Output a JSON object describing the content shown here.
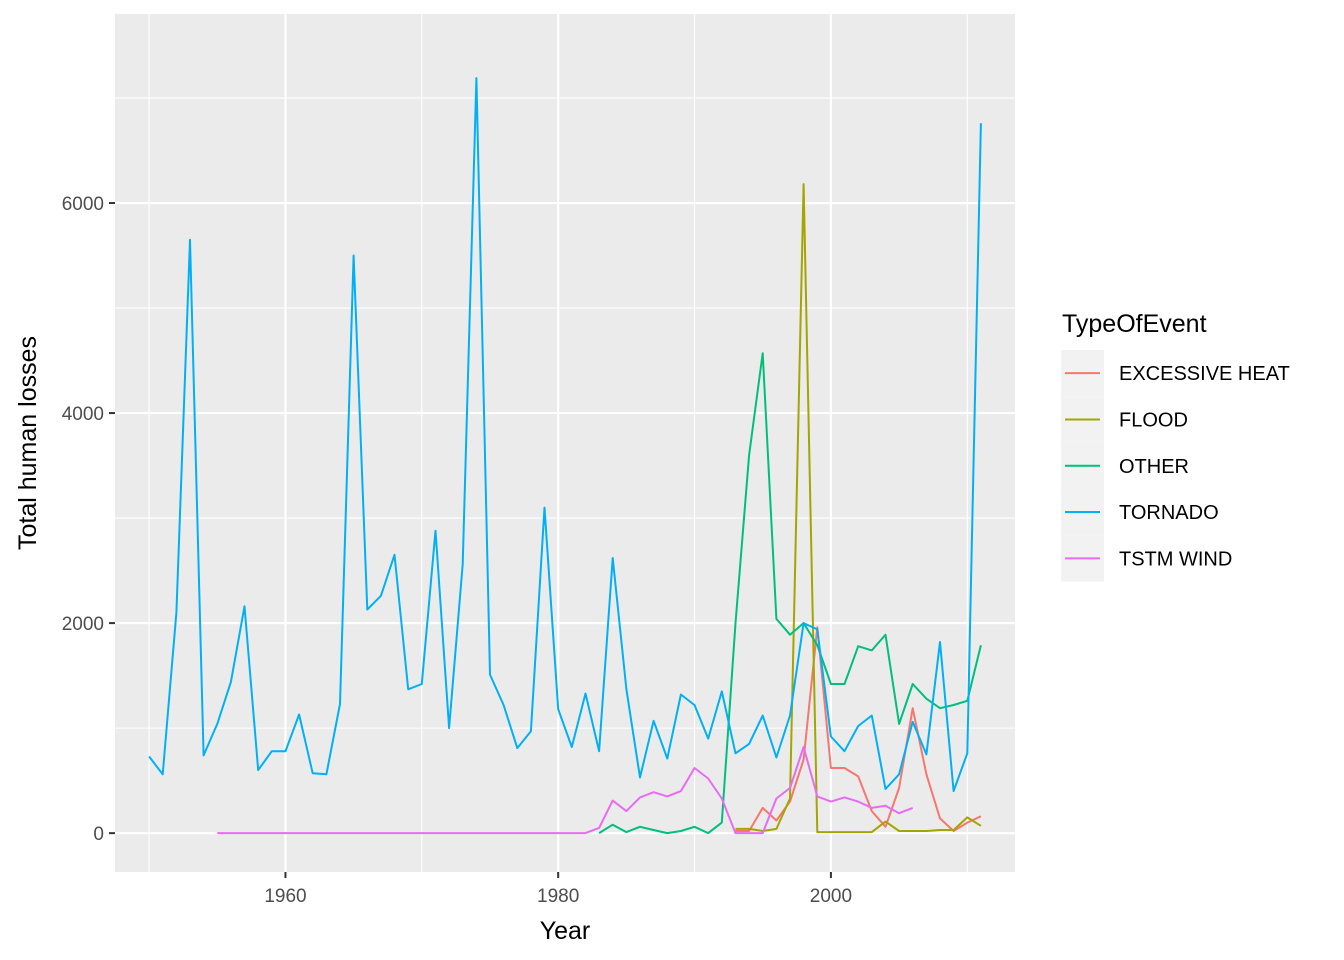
{
  "chart_data": {
    "type": "line",
    "xlabel": "Year",
    "ylabel": "Total human losses",
    "xlim": [
      1947.5,
      2013.5
    ],
    "ylim": [
      -370,
      7800
    ],
    "x_ticks": [
      1960,
      1980,
      2000
    ],
    "y_ticks": [
      0,
      2000,
      4000,
      6000
    ],
    "grid": true,
    "legend_position": "right",
    "legend": {
      "title": "TypeOfEvent"
    },
    "series": [
      {
        "name": "EXCESSIVE HEAT",
        "color": "#F8766D",
        "x": [
          1993,
          1994,
          1995,
          1996,
          1997,
          1998,
          1999,
          2000,
          2001,
          2002,
          2003,
          2004,
          2005,
          2006,
          2007,
          2008,
          2009,
          2010,
          2011
        ],
        "y": [
          20,
          20,
          240,
          120,
          300,
          700,
          1960,
          620,
          620,
          540,
          210,
          60,
          430,
          1190,
          560,
          140,
          20,
          100,
          160
        ]
      },
      {
        "name": "FLOOD",
        "color": "#A3A500",
        "x": [
          1993,
          1994,
          1995,
          1996,
          1997,
          1998,
          1999,
          2000,
          2001,
          2002,
          2003,
          2004,
          2005,
          2006,
          2007,
          2008,
          2009,
          2010,
          2011
        ],
        "y": [
          40,
          40,
          20,
          40,
          330,
          6180,
          10,
          10,
          10,
          10,
          10,
          110,
          20,
          20,
          20,
          30,
          30,
          150,
          70
        ]
      },
      {
        "name": "OTHER",
        "color": "#00BF7D",
        "x": [
          1983,
          1984,
          1985,
          1986,
          1987,
          1988,
          1989,
          1990,
          1991,
          1992,
          1993,
          1994,
          1995,
          1996,
          1997,
          1998,
          1999,
          2000,
          2001,
          2002,
          2003,
          2004,
          2005,
          2006,
          2007,
          2008,
          2009,
          2010,
          2011
        ],
        "y": [
          0,
          80,
          10,
          60,
          30,
          0,
          20,
          60,
          0,
          100,
          2000,
          3600,
          4570,
          2040,
          1890,
          2000,
          1790,
          1420,
          1420,
          1780,
          1740,
          1890,
          1040,
          1420,
          1280,
          1190,
          1220,
          1260,
          1790
        ]
      },
      {
        "name": "TORNADO",
        "color": "#00B0F6",
        "x": [
          1950,
          1951,
          1952,
          1953,
          1954,
          1955,
          1956,
          1957,
          1958,
          1959,
          1960,
          1961,
          1962,
          1963,
          1964,
          1965,
          1966,
          1967,
          1968,
          1969,
          1970,
          1971,
          1972,
          1973,
          1974,
          1975,
          1976,
          1977,
          1978,
          1979,
          1980,
          1981,
          1982,
          1983,
          1984,
          1985,
          1986,
          1987,
          1988,
          1989,
          1990,
          1991,
          1992,
          1993,
          1994,
          1995,
          1996,
          1997,
          1998,
          1999,
          2000,
          2001,
          2002,
          2003,
          2004,
          2005,
          2006,
          2007,
          2008,
          2009,
          2010,
          2011
        ],
        "y": [
          730,
          560,
          2100,
          5650,
          740,
          1040,
          1440,
          2160,
          600,
          780,
          780,
          1130,
          570,
          560,
          1230,
          5500,
          2130,
          2260,
          2650,
          1370,
          1420,
          2880,
          1000,
          2560,
          7190,
          1510,
          1220,
          810,
          970,
          3100,
          1180,
          820,
          1330,
          780,
          2620,
          1370,
          530,
          1070,
          710,
          1320,
          1220,
          900,
          1350,
          760,
          850,
          1120,
          720,
          1120,
          2000,
          1940,
          920,
          780,
          1020,
          1120,
          420,
          560,
          1060,
          750,
          1820,
          400,
          760,
          6760
        ]
      },
      {
        "name": "TSTM WIND",
        "color": "#E76BF3",
        "x": [
          1955,
          1956,
          1957,
          1958,
          1959,
          1960,
          1961,
          1962,
          1963,
          1964,
          1965,
          1966,
          1967,
          1968,
          1969,
          1970,
          1971,
          1972,
          1973,
          1974,
          1975,
          1976,
          1977,
          1978,
          1979,
          1980,
          1981,
          1982,
          1983,
          1984,
          1985,
          1986,
          1987,
          1988,
          1989,
          1990,
          1991,
          1992,
          1993,
          1994,
          1995,
          1996,
          1997,
          1998,
          1999,
          2000,
          2001,
          2002,
          2003,
          2004,
          2005,
          2006
        ],
        "y": [
          0,
          0,
          0,
          0,
          0,
          0,
          0,
          0,
          0,
          0,
          0,
          0,
          0,
          0,
          0,
          0,
          0,
          0,
          0,
          0,
          0,
          0,
          0,
          0,
          0,
          0,
          0,
          0,
          50,
          310,
          210,
          340,
          390,
          350,
          400,
          620,
          520,
          330,
          0,
          0,
          0,
          330,
          430,
          820,
          350,
          300,
          340,
          300,
          240,
          260,
          190,
          240
        ]
      }
    ]
  }
}
